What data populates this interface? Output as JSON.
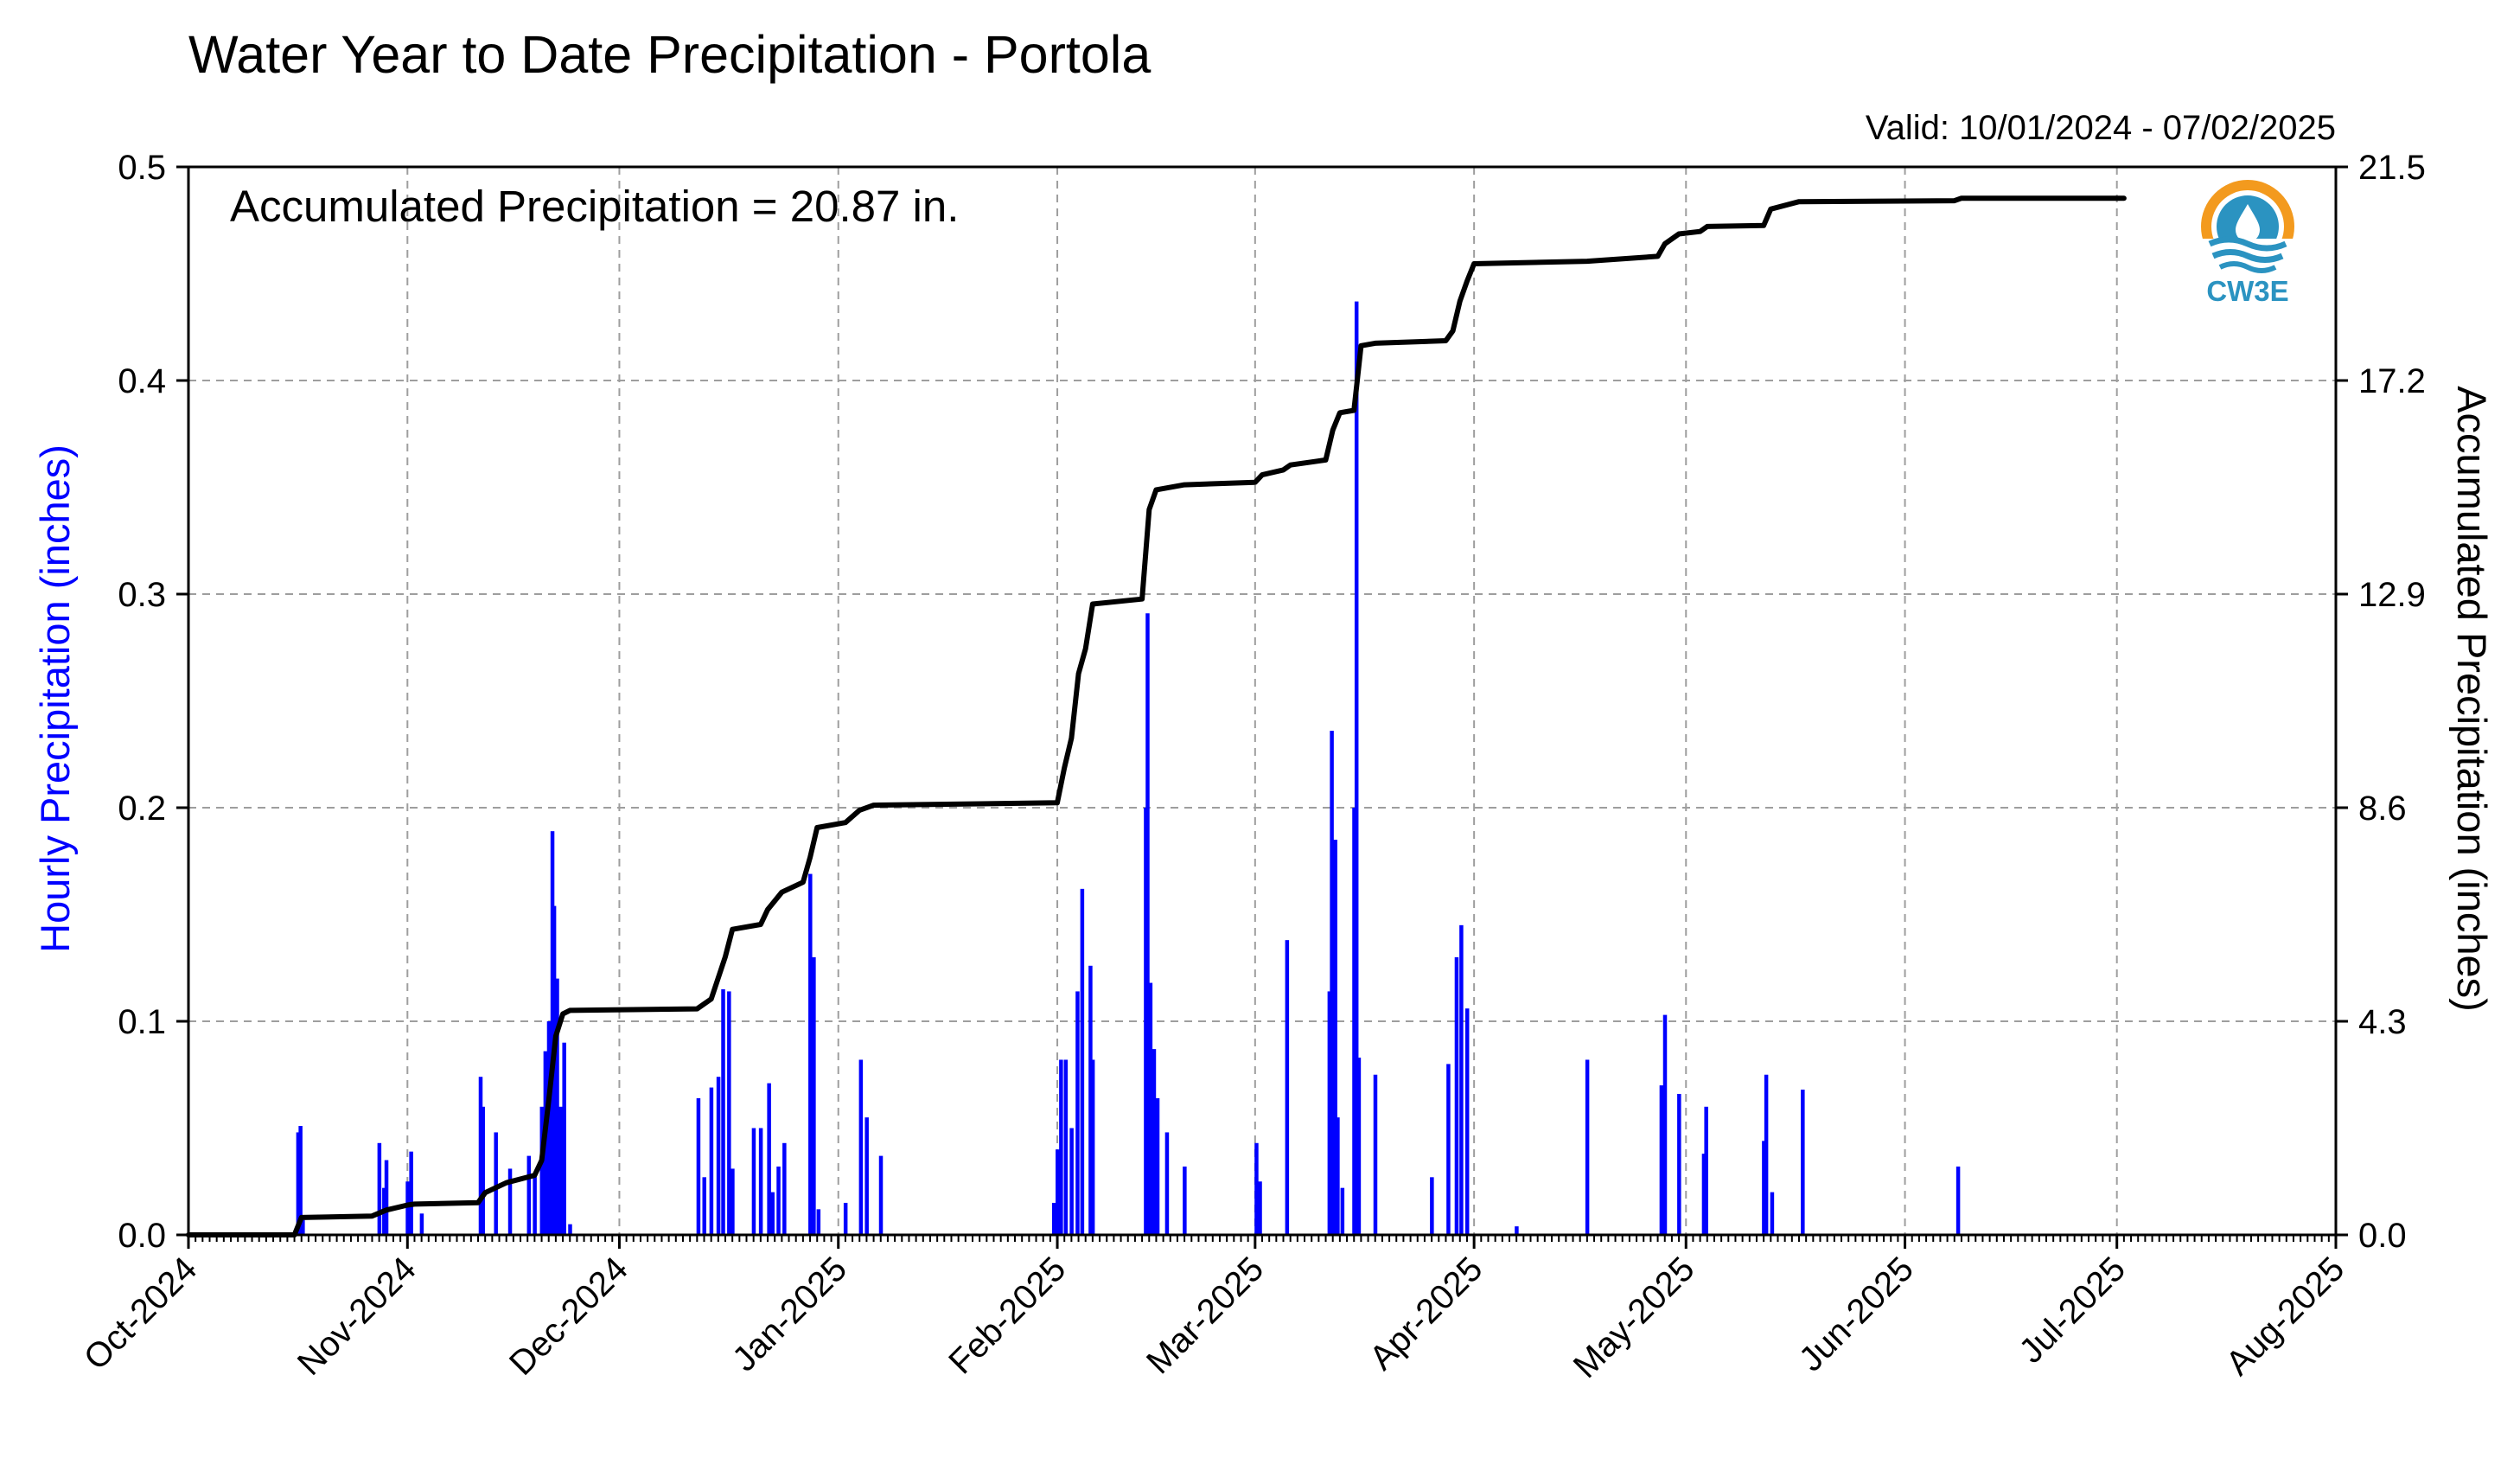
{
  "title": "Water Year to Date Precipitation - Portola",
  "valid_label": "Valid: 10/01/2024 - 07/02/2025",
  "annotation": "Accumulated Precipitation = 20.87 in.",
  "logo": {
    "text": "CW3E",
    "icon": "water-drop-sun-logo-icon"
  },
  "colors": {
    "bars": "#0000ff",
    "line": "#000000",
    "ylabel_left": "#0000ff",
    "grid": "#9e9e9e",
    "logo_orange": "#f39a1e",
    "logo_blue": "#2b93c1"
  },
  "chart_data": {
    "type": "bar+line",
    "xlabel": "",
    "ylabel": "Hourly Precipitation (inches)",
    "ylabel_right": "Accumulated Precipitation (inches)",
    "xlim": [
      "2024-10-01",
      "2025-08-01"
    ],
    "ylim": [
      0,
      0.5
    ],
    "ylim_right": [
      0,
      21.5
    ],
    "x_ticks": [
      "Oct-2024",
      "Nov-2024",
      "Dec-2024",
      "Jan-2025",
      "Feb-2025",
      "Mar-2025",
      "Apr-2025",
      "May-2025",
      "Jun-2025",
      "Jul-2025",
      "Aug-2025"
    ],
    "x_tick_dates": [
      "2024-10-01",
      "2024-11-01",
      "2024-12-01",
      "2025-01-01",
      "2025-02-01",
      "2025-03-01",
      "2025-04-01",
      "2025-05-01",
      "2025-06-01",
      "2025-07-01",
      "2025-08-01"
    ],
    "y_ticks": [
      "0.0",
      "0.1",
      "0.2",
      "0.3",
      "0.4",
      "0.5"
    ],
    "y_ticks_right": [
      "0.0",
      "4.3",
      "8.6",
      "12.9",
      "17.2",
      "21.5"
    ],
    "grid": true,
    "series": [
      {
        "name": "Hourly Precipitation",
        "type": "bar",
        "points": [
          [
            "2024-10-16 12:00",
            0.048
          ],
          [
            "2024-10-16 20:00",
            0.051
          ],
          [
            "2024-10-17 04:00",
            0.007
          ],
          [
            "2024-10-28 00:00",
            0.043
          ],
          [
            "2024-10-28 16:00",
            0.022
          ],
          [
            "2024-10-29 00:00",
            0.035
          ],
          [
            "2024-11-01 00:00",
            0.025
          ],
          [
            "2024-11-01 12:00",
            0.039
          ],
          [
            "2024-11-03 00:00",
            0.01
          ],
          [
            "2024-11-11 08:00",
            0.074
          ],
          [
            "2024-11-11 16:00",
            0.06
          ],
          [
            "2024-11-13 12:00",
            0.048
          ],
          [
            "2024-11-15 12:00",
            0.031
          ],
          [
            "2024-11-18 04:00",
            0.037
          ],
          [
            "2024-11-19 00:00",
            0.028
          ],
          [
            "2024-11-20 00:00",
            0.06
          ],
          [
            "2024-11-20 12:00",
            0.086
          ],
          [
            "2024-11-21 00:00",
            0.1
          ],
          [
            "2024-11-21 12:00",
            0.189
          ],
          [
            "2024-11-21 18:00",
            0.154
          ],
          [
            "2024-11-22 04:00",
            0.12
          ],
          [
            "2024-11-22 16:00",
            0.06
          ],
          [
            "2024-11-23 04:00",
            0.09
          ],
          [
            "2024-11-24 00:00",
            0.005
          ],
          [
            "2024-12-12 04:00",
            0.064
          ],
          [
            "2024-12-13 00:00",
            0.027
          ],
          [
            "2024-12-14 00:00",
            0.069
          ],
          [
            "2024-12-15 00:00",
            0.074
          ],
          [
            "2024-12-15 16:00",
            0.115
          ],
          [
            "2024-12-16 12:00",
            0.114
          ],
          [
            "2024-12-17 00:00",
            0.031
          ],
          [
            "2024-12-20 00:00",
            0.05
          ],
          [
            "2024-12-21 00:00",
            0.05
          ],
          [
            "2024-12-22 04:00",
            0.071
          ],
          [
            "2024-12-22 16:00",
            0.02
          ],
          [
            "2024-12-23 12:00",
            0.032
          ],
          [
            "2024-12-24 08:00",
            0.043
          ],
          [
            "2024-12-28 00:00",
            0.169
          ],
          [
            "2024-12-28 12:00",
            0.13
          ],
          [
            "2024-12-29 04:00",
            0.012
          ],
          [
            "2025-01-02 00:00",
            0.015
          ],
          [
            "2025-01-04 04:00",
            0.082
          ],
          [
            "2025-01-05 00:00",
            0.055
          ],
          [
            "2025-01-07 00:00",
            0.037
          ],
          [
            "2025-01-31 12:00",
            0.015
          ],
          [
            "2025-02-01 00:00",
            0.04
          ],
          [
            "2025-02-01 12:00",
            0.082
          ],
          [
            "2025-02-02 04:00",
            0.082
          ],
          [
            "2025-02-03 00:00",
            0.05
          ],
          [
            "2025-02-03 20:00",
            0.114
          ],
          [
            "2025-02-04 12:00",
            0.162
          ],
          [
            "2025-02-05 16:00",
            0.126
          ],
          [
            "2025-02-06 00:00",
            0.082
          ],
          [
            "2025-02-13 12:00",
            0.2
          ],
          [
            "2025-02-13 18:00",
            0.291
          ],
          [
            "2025-02-14 04:00",
            0.118
          ],
          [
            "2025-02-14 16:00",
            0.087
          ],
          [
            "2025-02-15 04:00",
            0.064
          ],
          [
            "2025-02-16 12:00",
            0.048
          ],
          [
            "2025-02-19 00:00",
            0.032
          ],
          [
            "2025-03-01 04:00",
            0.043
          ],
          [
            "2025-03-01 16:00",
            0.025
          ],
          [
            "2025-03-05 12:00",
            0.138
          ],
          [
            "2025-03-11 12:00",
            0.114
          ],
          [
            "2025-03-11 20:00",
            0.236
          ],
          [
            "2025-03-12 08:00",
            0.185
          ],
          [
            "2025-03-12 16:00",
            0.055
          ],
          [
            "2025-03-13 08:00",
            0.022
          ],
          [
            "2025-03-15 00:00",
            0.2
          ],
          [
            "2025-03-15 08:00",
            0.437
          ],
          [
            "2025-03-15 16:00",
            0.083
          ],
          [
            "2025-03-18 00:00",
            0.075
          ],
          [
            "2025-03-26 00:00",
            0.027
          ],
          [
            "2025-03-28 08:00",
            0.08
          ],
          [
            "2025-03-29 12:00",
            0.13
          ],
          [
            "2025-03-30 04:00",
            0.145
          ],
          [
            "2025-03-31 00:00",
            0.106
          ],
          [
            "2025-04-07 00:00",
            0.004
          ],
          [
            "2025-04-17 00:00",
            0.082
          ],
          [
            "2025-04-27 12:00",
            0.07
          ],
          [
            "2025-04-28 00:00",
            0.103
          ],
          [
            "2025-04-30 00:00",
            0.066
          ],
          [
            "2025-05-03 12:00",
            0.038
          ],
          [
            "2025-05-03 20:00",
            0.06
          ],
          [
            "2025-05-12 00:00",
            0.044
          ],
          [
            "2025-05-12 08:00",
            0.075
          ],
          [
            "2025-05-13 04:00",
            0.02
          ],
          [
            "2025-05-17 12:00",
            0.068
          ],
          [
            "2025-06-08 12:00",
            0.032
          ]
        ]
      },
      {
        "name": "Accumulated Precipitation",
        "type": "line",
        "points": [
          [
            "2024-10-01 00:00",
            0.0
          ],
          [
            "2024-10-16 00:00",
            0.0
          ],
          [
            "2024-10-17 00:00",
            0.35
          ],
          [
            "2024-10-27 00:00",
            0.38
          ],
          [
            "2024-10-29 00:00",
            0.5
          ],
          [
            "2024-11-01 00:00",
            0.6
          ],
          [
            "2024-11-02 00:00",
            0.62
          ],
          [
            "2024-11-11 00:00",
            0.65
          ],
          [
            "2024-11-12 00:00",
            0.85
          ],
          [
            "2024-11-15 00:00",
            1.05
          ],
          [
            "2024-11-19 00:00",
            1.2
          ],
          [
            "2024-11-20 00:00",
            1.5
          ],
          [
            "2024-11-21 00:00",
            2.7
          ],
          [
            "2024-11-22 00:00",
            4.0
          ],
          [
            "2024-11-23 00:00",
            4.45
          ],
          [
            "2024-11-24 00:00",
            4.52
          ],
          [
            "2024-12-12 00:00",
            4.55
          ],
          [
            "2024-12-14 00:00",
            4.75
          ],
          [
            "2024-12-16 00:00",
            5.6
          ],
          [
            "2024-12-17 00:00",
            6.15
          ],
          [
            "2024-12-21 00:00",
            6.25
          ],
          [
            "2024-12-22 00:00",
            6.55
          ],
          [
            "2024-12-24 00:00",
            6.9
          ],
          [
            "2024-12-27 00:00",
            7.1
          ],
          [
            "2024-12-28 00:00",
            7.6
          ],
          [
            "2024-12-29 00:00",
            8.2
          ],
          [
            "2025-01-02 00:00",
            8.3
          ],
          [
            "2025-01-04 00:00",
            8.55
          ],
          [
            "2025-01-06 00:00",
            8.65
          ],
          [
            "2025-02-01 00:00",
            8.7
          ],
          [
            "2025-02-02 00:00",
            9.4
          ],
          [
            "2025-02-03 00:00",
            10.0
          ],
          [
            "2025-02-04 00:00",
            11.3
          ],
          [
            "2025-02-05 00:00",
            11.8
          ],
          [
            "2025-02-06 00:00",
            12.7
          ],
          [
            "2025-02-13 00:00",
            12.8
          ],
          [
            "2025-02-14 00:00",
            14.6
          ],
          [
            "2025-02-15 00:00",
            15.0
          ],
          [
            "2025-02-19 00:00",
            15.1
          ],
          [
            "2025-03-01 00:00",
            15.15
          ],
          [
            "2025-03-02 00:00",
            15.3
          ],
          [
            "2025-03-05 00:00",
            15.4
          ],
          [
            "2025-03-06 00:00",
            15.5
          ],
          [
            "2025-03-11 00:00",
            15.6
          ],
          [
            "2025-03-12 00:00",
            16.2
          ],
          [
            "2025-03-13 00:00",
            16.55
          ],
          [
            "2025-03-15 00:00",
            16.6
          ],
          [
            "2025-03-16 00:00",
            17.9
          ],
          [
            "2025-03-18 00:00",
            17.95
          ],
          [
            "2025-03-28 00:00",
            18.0
          ],
          [
            "2025-03-29 00:00",
            18.2
          ],
          [
            "2025-03-30 00:00",
            18.8
          ],
          [
            "2025-03-31 00:00",
            19.2
          ],
          [
            "2025-04-01 00:00",
            19.55
          ],
          [
            "2025-04-17 00:00",
            19.6
          ],
          [
            "2025-04-27 00:00",
            19.7
          ],
          [
            "2025-04-28 00:00",
            19.95
          ],
          [
            "2025-04-30 00:00",
            20.15
          ],
          [
            "2025-05-03 00:00",
            20.2
          ],
          [
            "2025-05-04 00:00",
            20.3
          ],
          [
            "2025-05-12 00:00",
            20.32
          ],
          [
            "2025-05-13 00:00",
            20.65
          ],
          [
            "2025-05-17 00:00",
            20.8
          ],
          [
            "2025-06-08 00:00",
            20.82
          ],
          [
            "2025-06-09 00:00",
            20.87
          ],
          [
            "2025-07-02 00:00",
            20.87
          ]
        ]
      }
    ]
  }
}
